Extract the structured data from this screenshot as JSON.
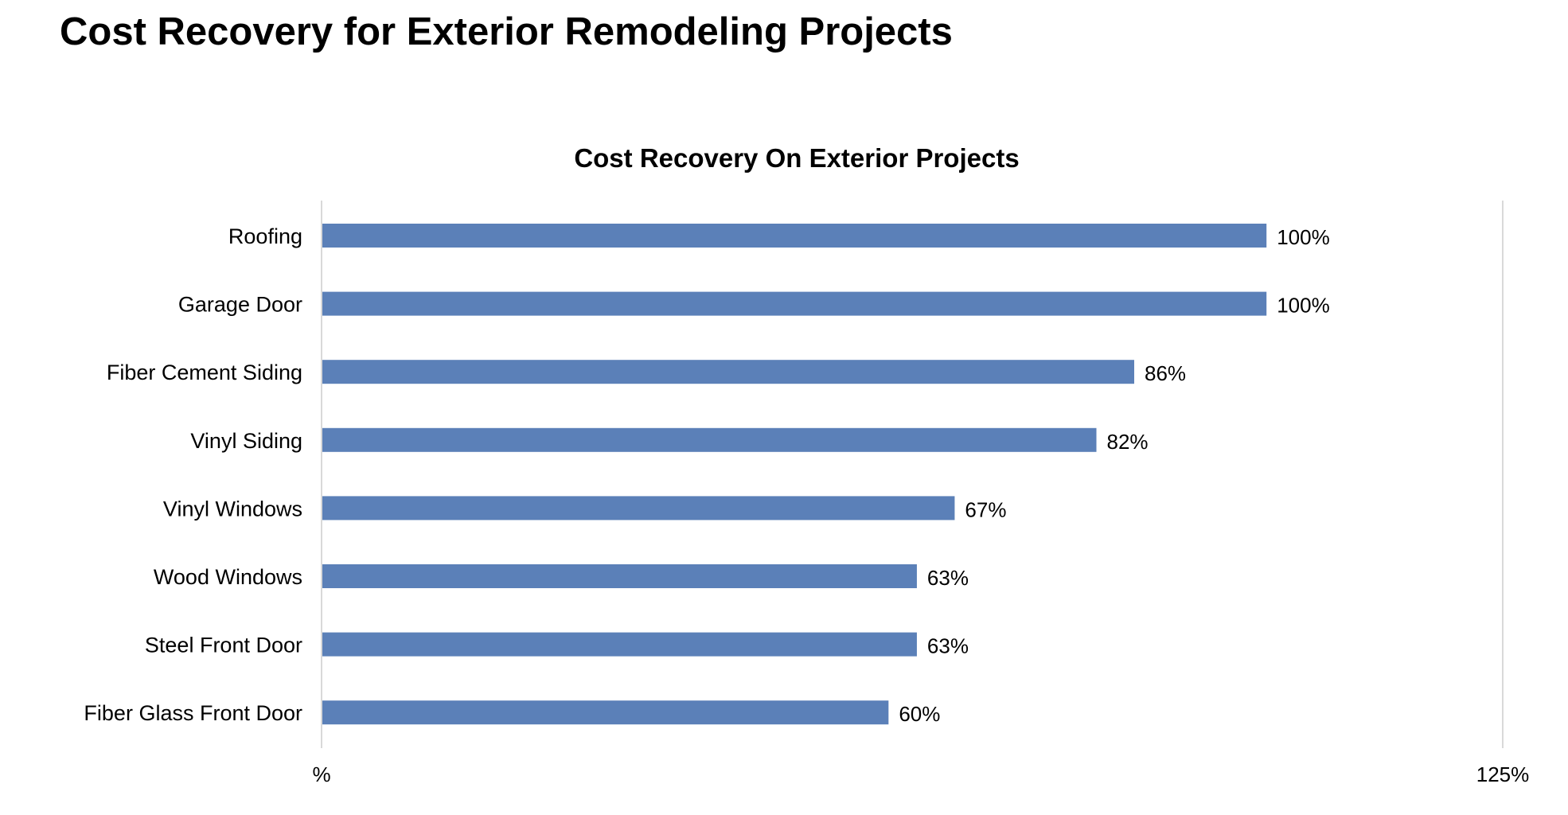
{
  "page": {
    "title": "Cost Recovery for Exterior Remodeling Projects"
  },
  "chart_data": {
    "type": "bar",
    "orientation": "horizontal",
    "title": "Cost Recovery On Exterior Projects",
    "categories": [
      "Roofing",
      "Garage Door",
      "Fiber Cement Siding",
      "Vinyl Siding",
      "Vinyl Windows",
      "Wood Windows",
      "Steel Front Door",
      "Fiber Glass Front Door"
    ],
    "values": [
      100,
      100,
      86,
      82,
      67,
      63,
      63,
      60
    ],
    "value_labels": [
      "100%",
      "100%",
      "86%",
      "82%",
      "67%",
      "63%",
      "63%",
      "60%"
    ],
    "xlim": [
      0,
      125
    ],
    "x_tick_labels": [
      "%",
      "125%"
    ],
    "xlabel": "",
    "ylabel": "",
    "grid": false,
    "legend": "none",
    "colors": {
      "bar": "#5b80b8",
      "axis": "#d9d9d9"
    }
  }
}
